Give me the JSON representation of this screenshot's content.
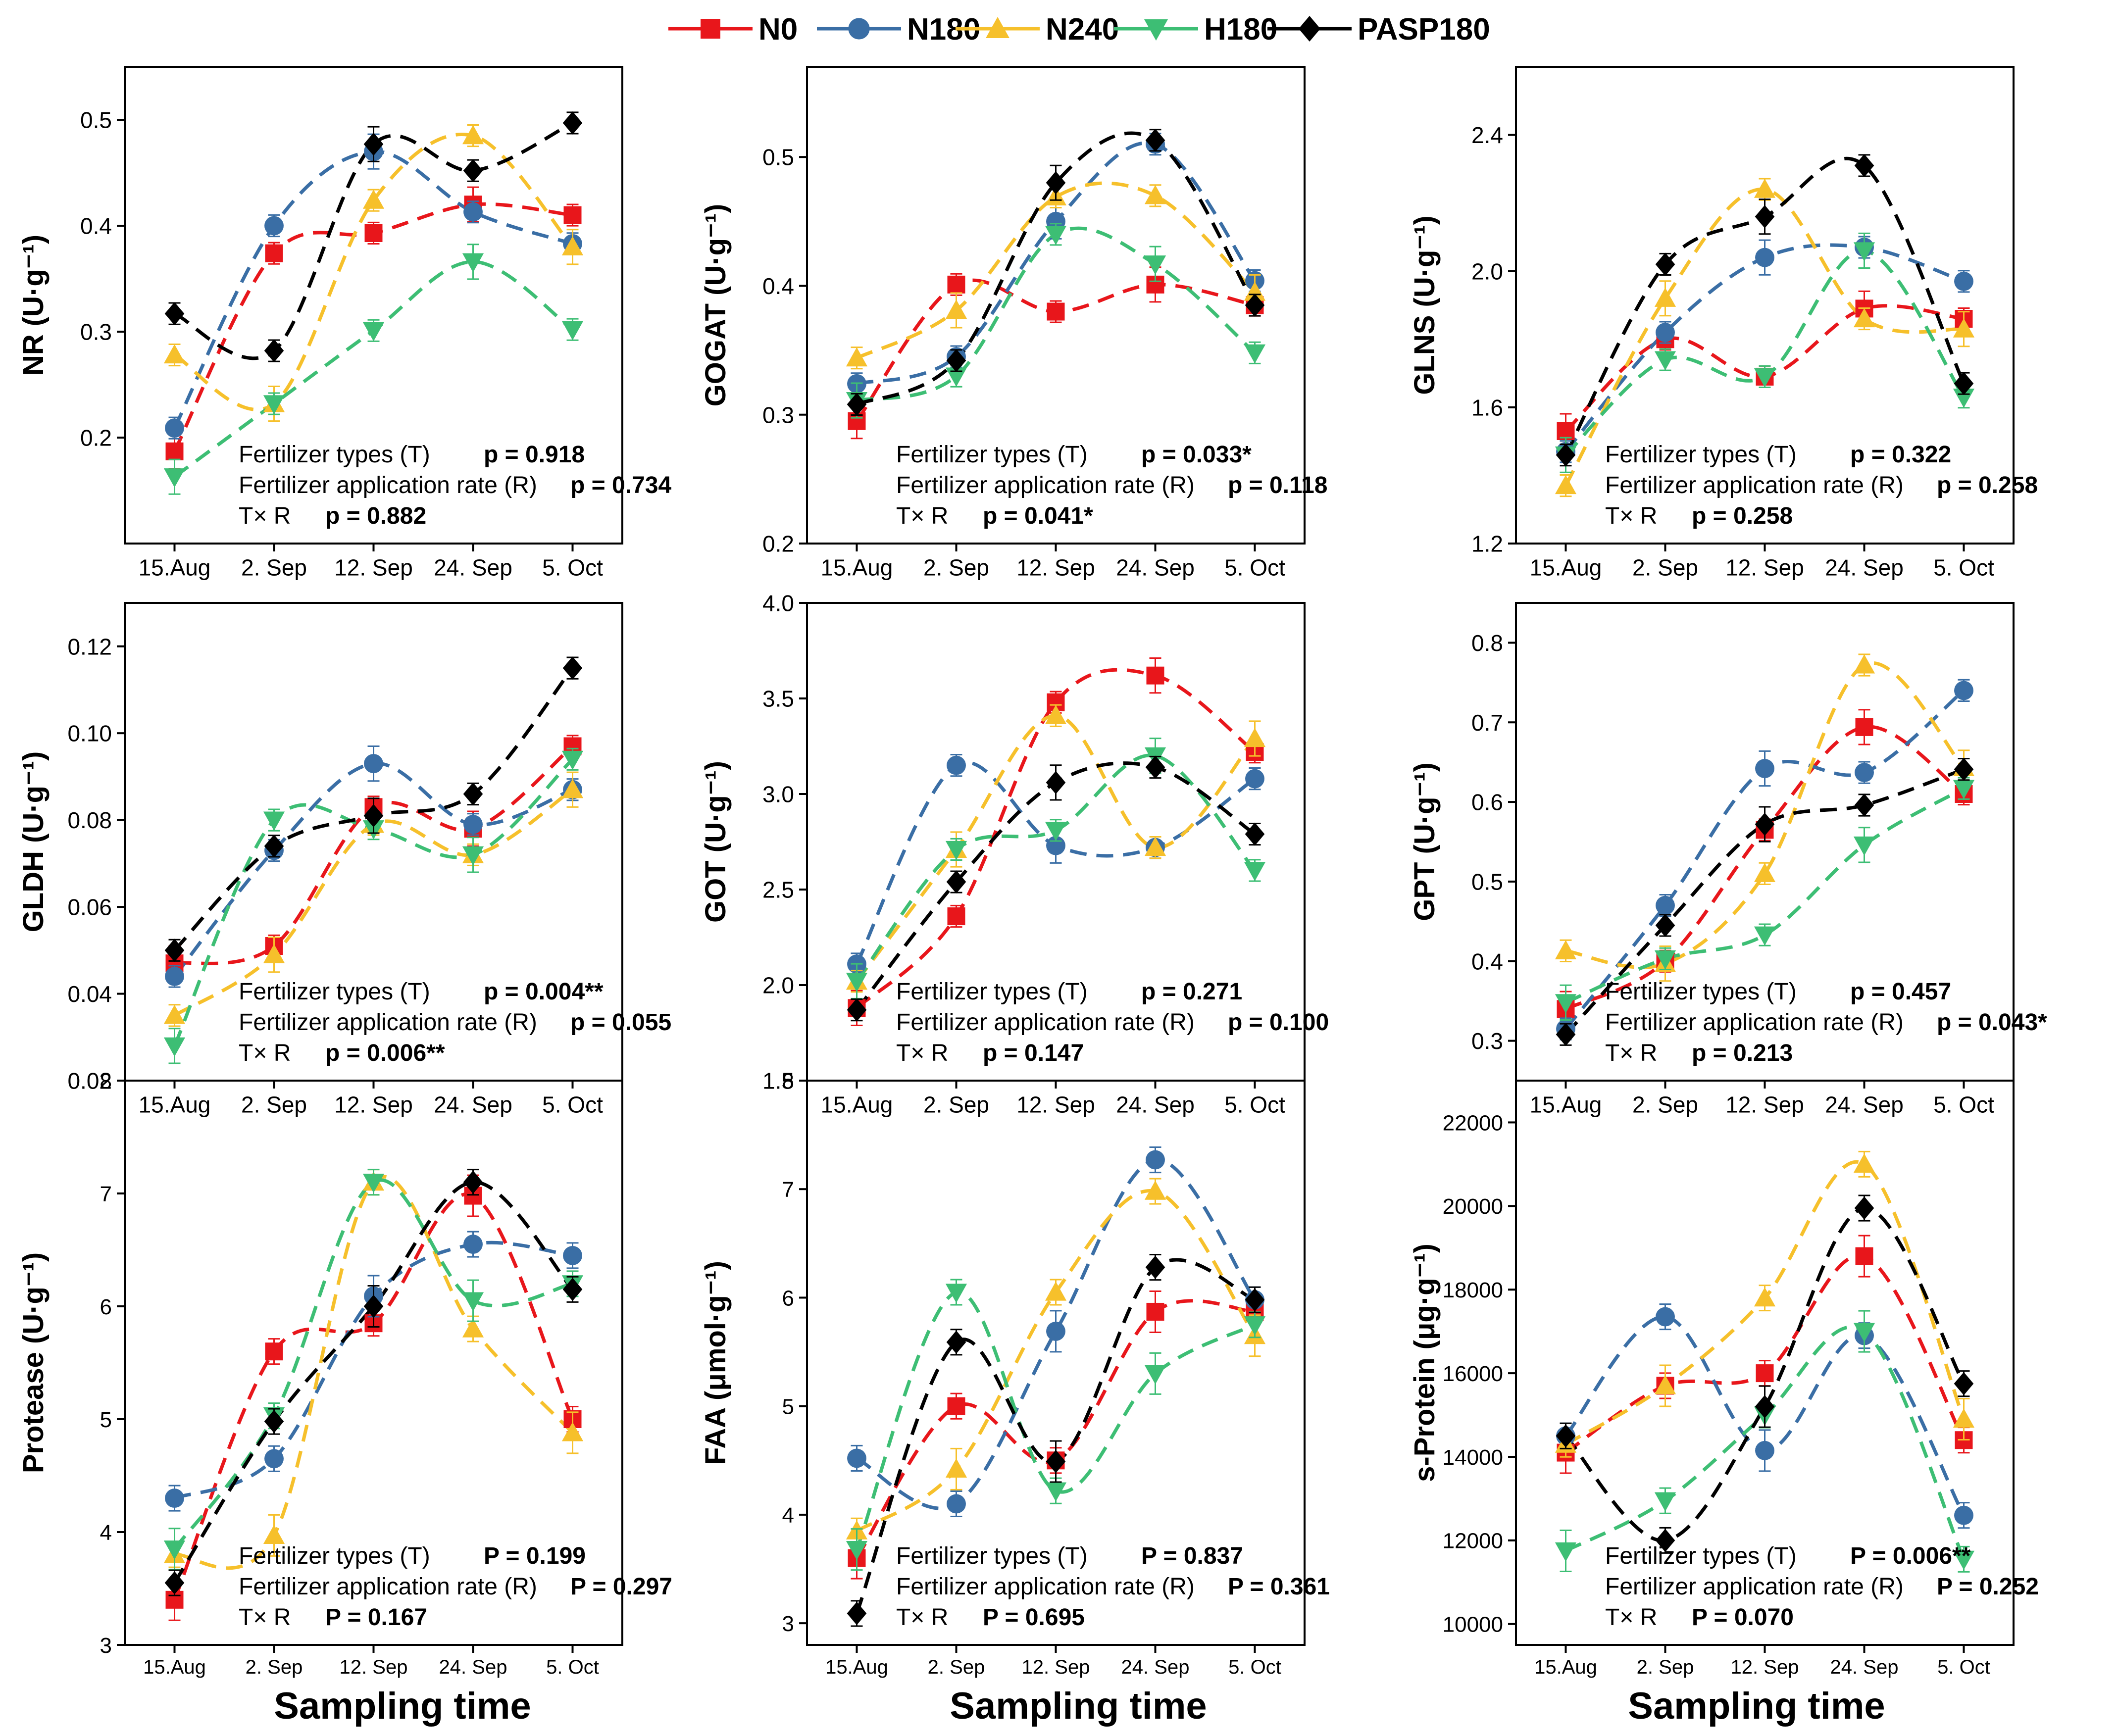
{
  "figure": {
    "x_common_label": "Sampling time",
    "legend": [
      {
        "name": "N0",
        "color": "#e8161b",
        "marker": "square"
      },
      {
        "name": "N180",
        "color": "#3a6ea5",
        "marker": "circle"
      },
      {
        "name": "N240",
        "color": "#f6c02b",
        "marker": "triangle-up"
      },
      {
        "name": "H180",
        "color": "#3dbe74",
        "marker": "triangle-down"
      },
      {
        "name": "PASP180",
        "color": "#000000",
        "marker": "diamond"
      }
    ]
  },
  "chart_data": [
    {
      "type": "line",
      "ylabel": "NR (U·g⁻¹)",
      "ylim": [
        0.1,
        0.55
      ],
      "yticks": [
        0.2,
        0.3,
        0.4,
        0.5
      ],
      "ytick_labels": [
        "0.2",
        "0.3",
        "0.4",
        "0.5"
      ],
      "categories": [
        "15.Aug",
        "2. Sep",
        "12. Sep",
        "24. Sep",
        "5. Oct"
      ],
      "series": [
        {
          "name": "N0",
          "values": [
            0.187,
            0.374,
            0.393,
            0.42,
            0.41
          ]
        },
        {
          "name": "N180",
          "values": [
            0.209,
            0.4,
            0.47,
            0.413,
            0.383
          ]
        },
        {
          "name": "N240",
          "values": [
            0.278,
            0.232,
            0.424,
            0.485,
            0.38
          ]
        },
        {
          "name": "H180",
          "values": [
            0.163,
            0.232,
            0.301,
            0.366,
            0.302
          ]
        },
        {
          "name": "PASP180",
          "values": [
            0.317,
            0.282,
            0.477,
            0.452,
            0.497
          ]
        }
      ],
      "stats": [
        {
          "label": "Fertilizer types (T)",
          "pval": "p = 0.918"
        },
        {
          "label": "Fertilizer application rate (R)",
          "pval": "p = 0.734"
        },
        {
          "label": "T× R",
          "pval": "p = 0.882"
        }
      ]
    },
    {
      "type": "line",
      "ylabel": "GOGAT (U·g⁻¹)",
      "ylim": [
        0.2,
        0.57
      ],
      "yticks": [
        0.2,
        0.3,
        0.4,
        0.5
      ],
      "ytick_labels": [
        "0.2",
        "0.3",
        "0.4",
        "0.5"
      ],
      "categories": [
        "15.Aug",
        "2. Sep",
        "12. Sep",
        "24. Sep",
        "5. Oct"
      ],
      "series": [
        {
          "name": "N0",
          "values": [
            0.295,
            0.401,
            0.38,
            0.401,
            0.385
          ]
        },
        {
          "name": "N180",
          "values": [
            0.324,
            0.345,
            0.45,
            0.51,
            0.404
          ]
        },
        {
          "name": "N240",
          "values": [
            0.344,
            0.381,
            0.469,
            0.47,
            0.395
          ]
        },
        {
          "name": "H180",
          "values": [
            0.311,
            0.33,
            0.44,
            0.417,
            0.348
          ]
        },
        {
          "name": "PASP180",
          "values": [
            0.308,
            0.342,
            0.48,
            0.513,
            0.385
          ]
        }
      ],
      "stats": [
        {
          "label": "Fertilizer types (T)",
          "pval": "p = 0.033*"
        },
        {
          "label": "Fertilizer application rate (R)",
          "pval": "p = 0.118"
        },
        {
          "label": "T× R",
          "pval": "p = 0.041*"
        }
      ]
    },
    {
      "type": "line",
      "ylabel": "GLNS (U·g⁻¹)",
      "ylim": [
        1.2,
        2.6
      ],
      "yticks": [
        1.2,
        1.6,
        2.0,
        2.4
      ],
      "ytick_labels": [
        "1.2",
        "1.6",
        "2.0",
        "2.4"
      ],
      "categories": [
        "15.Aug",
        "2. Sep",
        "12. Sep",
        "24. Sep",
        "5. Oct"
      ],
      "series": [
        {
          "name": "N0",
          "values": [
            1.53,
            1.8,
            1.69,
            1.89,
            1.86
          ]
        },
        {
          "name": "N180",
          "values": [
            1.47,
            1.82,
            2.04,
            2.07,
            1.97
          ]
        },
        {
          "name": "N240",
          "values": [
            1.37,
            1.92,
            2.24,
            1.86,
            1.83
          ]
        },
        {
          "name": "H180",
          "values": [
            1.46,
            1.74,
            1.69,
            2.06,
            1.63
          ]
        },
        {
          "name": "PASP180",
          "values": [
            1.46,
            2.02,
            2.16,
            2.31,
            1.67
          ]
        }
      ],
      "stats": [
        {
          "label": "Fertilizer types (T)",
          "pval": "p = 0.322"
        },
        {
          "label": "Fertilizer application rate (R)",
          "pval": "p = 0.258"
        },
        {
          "label": "T× R",
          "pval": "p = 0.258"
        }
      ]
    },
    {
      "type": "line",
      "ylabel": "GLDH (U·g⁻¹)",
      "ylim": [
        0.02,
        0.13
      ],
      "yticks": [
        0.02,
        0.04,
        0.06,
        0.08,
        0.1,
        0.12
      ],
      "ytick_labels": [
        "0.02",
        "0.04",
        "0.06",
        "0.08",
        "0.10",
        "0.12"
      ],
      "categories": [
        "15.Aug",
        "2. Sep",
        "12. Sep",
        "24. Sep",
        "5. Oct"
      ],
      "series": [
        {
          "name": "N0",
          "values": [
            0.047,
            0.051,
            0.083,
            0.078,
            0.097
          ]
        },
        {
          "name": "N180",
          "values": [
            0.044,
            0.073,
            0.093,
            0.079,
            0.087
          ]
        },
        {
          "name": "N240",
          "values": [
            0.035,
            0.049,
            0.079,
            0.072,
            0.087
          ]
        },
        {
          "name": "H180",
          "values": [
            0.028,
            0.08,
            0.078,
            0.072,
            0.094
          ]
        },
        {
          "name": "PASP180",
          "values": [
            0.05,
            0.074,
            0.081,
            0.086,
            0.115
          ]
        }
      ],
      "stats": [
        {
          "label": "Fertilizer types (T)",
          "pval": "p = 0.004**"
        },
        {
          "label": "Fertilizer application rate (R)",
          "pval": "p = 0.055"
        },
        {
          "label": "T× R",
          "pval": "p = 0.006**"
        }
      ]
    },
    {
      "type": "line",
      "ylabel": "GOT (U·g⁻¹)",
      "ylim": [
        1.5,
        4.0
      ],
      "yticks": [
        1.5,
        2.0,
        2.5,
        3.0,
        3.5,
        4.0
      ],
      "ytick_labels": [
        "1.5",
        "2.0",
        "2.5",
        "3.0",
        "3.5",
        "4.0"
      ],
      "categories": [
        "15.Aug",
        "2. Sep",
        "12. Sep",
        "24. Sep",
        "5. Oct"
      ],
      "series": [
        {
          "name": "N0",
          "values": [
            1.88,
            2.36,
            3.48,
            3.62,
            3.22
          ]
        },
        {
          "name": "N180",
          "values": [
            2.11,
            3.15,
            2.73,
            2.72,
            3.08
          ]
        },
        {
          "name": "N240",
          "values": [
            2.02,
            2.71,
            3.41,
            2.72,
            3.29
          ]
        },
        {
          "name": "H180",
          "values": [
            2.02,
            2.71,
            2.81,
            3.2,
            2.6
          ]
        },
        {
          "name": "PASP180",
          "values": [
            1.87,
            2.54,
            3.06,
            3.14,
            2.79
          ]
        }
      ],
      "stats": [
        {
          "label": "Fertilizer types (T)",
          "pval": "p = 0.271"
        },
        {
          "label": "Fertilizer application rate (R)",
          "pval": "p = 0.100"
        },
        {
          "label": "T× R",
          "pval": "p = 0.147"
        }
      ]
    },
    {
      "type": "line",
      "ylabel": "GPT (U·g⁻¹)",
      "ylim": [
        0.25,
        0.85
      ],
      "yticks": [
        0.3,
        0.4,
        0.5,
        0.6,
        0.7,
        0.8
      ],
      "ytick_labels": [
        "0.3",
        "0.4",
        "0.5",
        "0.6",
        "0.7",
        "0.8"
      ],
      "categories": [
        "15.Aug",
        "2. Sep",
        "12. Sep",
        "24. Sep",
        "5. Oct"
      ],
      "series": [
        {
          "name": "N0",
          "values": [
            0.34,
            0.4,
            0.565,
            0.694,
            0.61
          ]
        },
        {
          "name": "N180",
          "values": [
            0.315,
            0.47,
            0.642,
            0.637,
            0.74
          ]
        },
        {
          "name": "N240",
          "values": [
            0.413,
            0.397,
            0.51,
            0.772,
            0.643
          ]
        },
        {
          "name": "H180",
          "values": [
            0.348,
            0.403,
            0.433,
            0.546,
            0.617
          ]
        },
        {
          "name": "PASP180",
          "values": [
            0.308,
            0.445,
            0.572,
            0.596,
            0.641
          ]
        }
      ],
      "stats": [
        {
          "label": "Fertilizer types (T)",
          "pval": "p = 0.457"
        },
        {
          "label": "Fertilizer application rate (R)",
          "pval": "p = 0.043*"
        },
        {
          "label": "T× R",
          "pval": "p = 0.213"
        }
      ]
    },
    {
      "type": "line",
      "ylabel": "Protease  (U·g⁻¹)",
      "ylim": [
        3,
        8
      ],
      "yticks": [
        3,
        4,
        5,
        6,
        7,
        8
      ],
      "ytick_labels": [
        "3",
        "4",
        "5",
        "6",
        "7",
        "8"
      ],
      "categories": [
        "15.Aug",
        "2. Sep",
        "12. Sep",
        "24. Sep",
        "5. Oct"
      ],
      "series": [
        {
          "name": "N0",
          "values": [
            3.4,
            5.6,
            5.85,
            6.98,
            5.0
          ]
        },
        {
          "name": "N180",
          "values": [
            4.3,
            4.65,
            6.09,
            6.55,
            6.45
          ]
        },
        {
          "name": "N240",
          "values": [
            3.8,
            3.97,
            7.1,
            5.8,
            4.88
          ]
        },
        {
          "name": "H180",
          "values": [
            3.85,
            5.03,
            7.1,
            6.05,
            6.2
          ]
        },
        {
          "name": "PASP180",
          "values": [
            3.55,
            4.98,
            6.0,
            7.1,
            6.15
          ]
        }
      ],
      "stats": [
        {
          "label": "Fertilizer types (T)",
          "pval": "P = 0.199"
        },
        {
          "label": "Fertilizer application rate (R)",
          "pval": "P = 0.297"
        },
        {
          "label": "T× R",
          "pval": "P = 0.167"
        }
      ]
    },
    {
      "type": "line",
      "ylabel": "FAA (μmol·g⁻¹)",
      "ylim": [
        2.8,
        8
      ],
      "yticks": [
        3,
        4,
        5,
        6,
        7,
        8
      ],
      "ytick_labels": [
        "3",
        "4",
        "5",
        "6",
        "7",
        "8"
      ],
      "categories": [
        "15.Aug",
        "2. Sep",
        "12. Sep",
        "24. Sep",
        "5. Oct"
      ],
      "series": [
        {
          "name": "N0",
          "values": [
            3.6,
            5.0,
            4.5,
            5.87,
            5.87
          ]
        },
        {
          "name": "N180",
          "values": [
            4.52,
            4.1,
            5.69,
            7.27,
            5.98
          ]
        },
        {
          "name": "N240",
          "values": [
            3.85,
            4.42,
            6.05,
            6.98,
            5.65
          ]
        },
        {
          "name": "H180",
          "values": [
            3.68,
            6.05,
            4.22,
            5.3,
            5.75
          ]
        },
        {
          "name": "PASP180",
          "values": [
            3.09,
            5.59,
            4.49,
            6.28,
            5.98
          ]
        }
      ],
      "stats": [
        {
          "label": "Fertilizer types (T)",
          "pval": "P = 0.837"
        },
        {
          "label": "Fertilizer application rate (R)",
          "pval": "P = 0.361"
        },
        {
          "label": "T× R",
          "pval": "P = 0.695"
        }
      ]
    },
    {
      "type": "line",
      "ylabel": "s-Protein (μg·g⁻¹)",
      "ylim": [
        9500,
        23000
      ],
      "yticks": [
        10000,
        12000,
        14000,
        16000,
        18000,
        20000,
        22000
      ],
      "ytick_labels": [
        "10000",
        "12000",
        "14000",
        "16000",
        "18000",
        "20000",
        "22000"
      ],
      "categories": [
        "15.Aug",
        "2. Sep",
        "12. Sep",
        "24. Sep",
        "5. Oct"
      ],
      "series": [
        {
          "name": "N0",
          "values": [
            14100,
            15700,
            16000,
            18800,
            14400
          ]
        },
        {
          "name": "N180",
          "values": [
            14500,
            17350,
            14150,
            16900,
            12600
          ]
        },
        {
          "name": "N240",
          "values": [
            14300,
            15700,
            17800,
            21000,
            14900
          ]
        },
        {
          "name": "H180",
          "values": [
            11750,
            12950,
            15000,
            17000,
            11550
          ]
        },
        {
          "name": "PASP180",
          "values": [
            14500,
            12000,
            15200,
            19950,
            15750
          ]
        }
      ],
      "stats": [
        {
          "label": "Fertilizer types (T)",
          "pval": "P = 0.006**"
        },
        {
          "label": "Fertilizer application rate (R)",
          "pval": "P = 0.252"
        },
        {
          "label": "T× R",
          "pval": "P = 0.070"
        }
      ]
    }
  ]
}
